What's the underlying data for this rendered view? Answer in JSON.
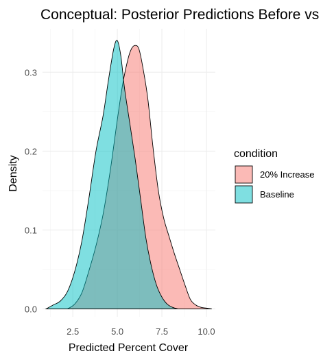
{
  "chart_data": {
    "type": "area",
    "title": "Conceptual: Posterior Predictions Before vs",
    "xlabel": "Predicted Percent Cover",
    "ylabel": "Density",
    "xlim": [
      0.8,
      10.5
    ],
    "ylim": [
      -0.01,
      0.355
    ],
    "x_ticks": [
      2.5,
      5.0,
      7.5,
      10.0
    ],
    "x_tick_labels": [
      "2.5",
      "5.0",
      "7.5",
      "10.0"
    ],
    "y_ticks": [
      0.0,
      0.1,
      0.2,
      0.3
    ],
    "y_tick_labels": [
      "0.0",
      "0.1",
      "0.2",
      "0.3"
    ],
    "grid": true,
    "legend": {
      "title": "condition",
      "position": "right"
    },
    "series": [
      {
        "name": "20% Increase",
        "color": "#F8766D",
        "opacity": 0.5,
        "x": [
          2.2,
          2.6,
          3.0,
          3.4,
          3.8,
          4.2,
          4.6,
          5.0,
          5.3,
          5.6,
          5.8,
          6.0,
          6.2,
          6.4,
          6.7,
          7.0,
          7.3,
          7.6,
          7.9,
          8.2,
          8.5,
          8.8,
          9.1,
          9.4,
          9.7,
          10.0,
          10.3
        ],
        "y": [
          0.0,
          0.006,
          0.02,
          0.048,
          0.08,
          0.12,
          0.175,
          0.24,
          0.285,
          0.317,
          0.33,
          0.334,
          0.33,
          0.31,
          0.268,
          0.205,
          0.15,
          0.115,
          0.092,
          0.07,
          0.05,
          0.03,
          0.012,
          0.005,
          0.002,
          0.001,
          0.0
        ]
      },
      {
        "name": "Baseline",
        "color": "#00BFC4",
        "opacity": 0.5,
        "x": [
          1.0,
          1.4,
          1.8,
          2.2,
          2.6,
          3.0,
          3.4,
          3.8,
          4.2,
          4.5,
          4.8,
          5.0,
          5.2,
          5.4,
          5.7,
          6.0,
          6.3,
          6.6,
          6.9,
          7.2,
          7.5,
          7.8,
          8.1,
          8.4
        ],
        "y": [
          0.0,
          0.005,
          0.01,
          0.022,
          0.047,
          0.085,
          0.14,
          0.2,
          0.245,
          0.29,
          0.33,
          0.34,
          0.32,
          0.28,
          0.235,
          0.19,
          0.14,
          0.09,
          0.055,
          0.03,
          0.015,
          0.006,
          0.002,
          0.0
        ]
      }
    ]
  }
}
